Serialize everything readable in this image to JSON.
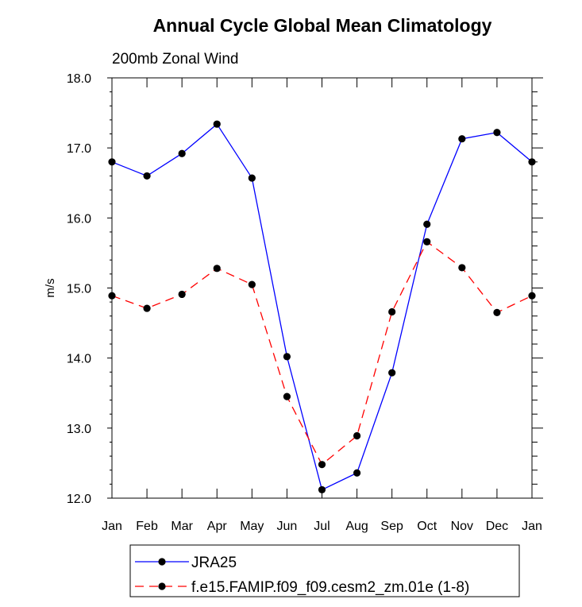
{
  "chart_data": {
    "type": "line",
    "title": "Annual Cycle Global Mean Climatology",
    "subtitle": "200mb Zonal Wind",
    "xlabel": "",
    "ylabel": "m/s",
    "categories": [
      "Jan",
      "Feb",
      "Mar",
      "Apr",
      "May",
      "Jun",
      "Jul",
      "Aug",
      "Sep",
      "Oct",
      "Nov",
      "Dec",
      "Jan"
    ],
    "ylim": [
      12.0,
      18.0
    ],
    "yticks": [
      "12.0",
      "13.0",
      "14.0",
      "15.0",
      "16.0",
      "17.0",
      "18.0"
    ],
    "grid": false,
    "legend_position": "bottom",
    "series": [
      {
        "name": "JRA25",
        "color": "#0000ff",
        "line_style": "solid",
        "marker": "filled-circle",
        "values": [
          16.8,
          16.6,
          16.92,
          17.34,
          16.57,
          14.02,
          12.12,
          12.36,
          13.79,
          15.91,
          17.13,
          17.22,
          16.8
        ]
      },
      {
        "name": "f.e15.FAMIP.f09_f09.cesm2_zm.01e (1-8)",
        "color": "#ff0000",
        "line_style": "dashed",
        "marker": "filled-circle",
        "values": [
          14.89,
          14.71,
          14.91,
          15.28,
          15.05,
          13.45,
          12.48,
          12.89,
          14.66,
          15.66,
          15.29,
          14.65,
          14.89
        ]
      }
    ]
  }
}
